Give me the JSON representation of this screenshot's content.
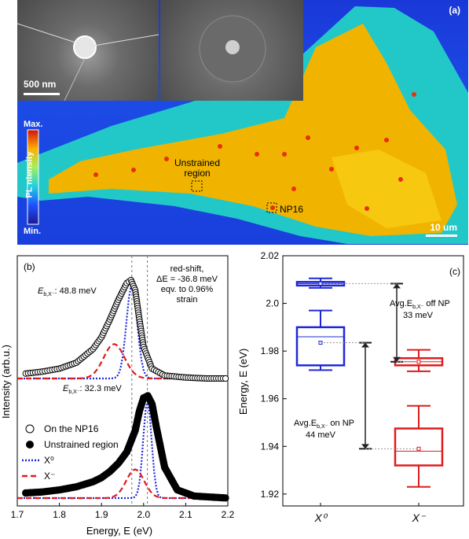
{
  "panel_a": {
    "label": "(a)",
    "sem_scale": "500 nm",
    "map_scale": "10 um",
    "colorbar_max": "Max.",
    "colorbar_min": "Min.",
    "colorbar_title": "PL ntensity",
    "region_unstrained": "Unstrained\nregion",
    "region_np": "NP16",
    "colors": {
      "background": "#1c4be6",
      "flake": "#f0b400",
      "edge": "#24d0c8"
    }
  },
  "panel_b": {
    "label": "(b)",
    "annotation_shift": "red-shift,\nΔE = -36.8 meV\neqv. to 0.96%\nstrain",
    "eb_top_prefix": "E",
    "eb_top_sub": "b,X⁻",
    "eb_top_value": ": 48.8 meV",
    "eb_bottom_prefix": "E",
    "eb_bottom_sub": "b,X⁻",
    "eb_bottom_value": ": 32.3 meV",
    "legend": [
      {
        "label": "On the NP16",
        "marker": "open-circle",
        "color": "#000000"
      },
      {
        "label": "Unstrained region",
        "marker": "filled-circle",
        "color": "#000000"
      },
      {
        "label": "X⁰",
        "marker": "dotted-line",
        "color": "#1f28d6"
      },
      {
        "label": "X⁻",
        "marker": "dashed-line",
        "color": "#e01b1b"
      }
    ],
    "chart_data": {
      "type": "line",
      "xlabel": "Energy, E (eV)",
      "ylabel": "Intensity (arb.u.)",
      "xlim": [
        1.7,
        2.2
      ],
      "xticks": [
        "1.7",
        "1.8",
        "1.9",
        "2.0",
        "2.1",
        "2.2"
      ],
      "reference_lines_x": [
        1.972,
        2.009
      ],
      "series": [
        {
          "name": "On the NP16",
          "x": [
            1.72,
            1.76,
            1.8,
            1.84,
            1.88,
            1.9,
            1.92,
            1.94,
            1.96,
            1.97,
            1.98,
            1.99,
            2.0,
            2.02,
            2.05,
            2.1,
            2.15,
            2.2
          ],
          "y": [
            0.05,
            0.07,
            0.1,
            0.16,
            0.3,
            0.42,
            0.6,
            0.8,
            0.97,
            1.0,
            0.9,
            0.6,
            0.32,
            0.1,
            0.03,
            0.01,
            0.0,
            0.0
          ]
        },
        {
          "name": "Unstrained region",
          "x": [
            1.72,
            1.76,
            1.8,
            1.84,
            1.88,
            1.9,
            1.92,
            1.94,
            1.96,
            1.98,
            1.99,
            2.0,
            2.01,
            2.02,
            2.03,
            2.05,
            2.08,
            2.12,
            2.2
          ],
          "y": [
            0.05,
            0.06,
            0.08,
            0.11,
            0.16,
            0.2,
            0.26,
            0.34,
            0.45,
            0.66,
            0.85,
            0.98,
            1.0,
            0.92,
            0.7,
            0.3,
            0.08,
            0.02,
            0.0
          ]
        }
      ]
    }
  },
  "panel_c": {
    "label": "(c)",
    "annotation_off": "Avg.E",
    "annotation_off_sub": "b,X⁻",
    "annotation_off_suffix": " off NP",
    "annotation_off_value": "33 meV",
    "annotation_on": "Avg.E",
    "annotation_on_sub": "b,X⁻",
    "annotation_on_suffix": " on NP",
    "annotation_on_value": "44 meV",
    "chart_data": {
      "type": "box",
      "ylabel": "Energy, E (eV)",
      "ylim": [
        1.915,
        2.02
      ],
      "yticks": [
        "1.92",
        "1.94",
        "1.96",
        "1.98",
        "2.0",
        "2.02"
      ],
      "categories": [
        "X⁰",
        "X⁻"
      ],
      "boxes": [
        {
          "category": "X⁰",
          "group": "off NP",
          "color": "#1f28d6",
          "min": 2.0065,
          "q1": 2.0075,
          "median": 2.0083,
          "q3": 2.009,
          "max": 2.0105,
          "mean": 2.0083
        },
        {
          "category": "X⁰",
          "group": "on NP",
          "color": "#1f28d6",
          "min": 1.972,
          "q1": 1.974,
          "median": 1.986,
          "q3": 1.99,
          "max": 1.997,
          "mean": 1.9835
        },
        {
          "category": "X⁻",
          "group": "off NP",
          "color": "#e01b1b",
          "min": 1.9715,
          "q1": 1.974,
          "median": 1.9755,
          "q3": 1.977,
          "max": 1.9805,
          "mean": 1.9755
        },
        {
          "category": "X⁻",
          "group": "on NP",
          "color": "#e01b1b",
          "min": 1.923,
          "q1": 1.932,
          "median": 1.938,
          "q3": 1.9475,
          "max": 1.957,
          "mean": 1.939
        }
      ]
    }
  }
}
